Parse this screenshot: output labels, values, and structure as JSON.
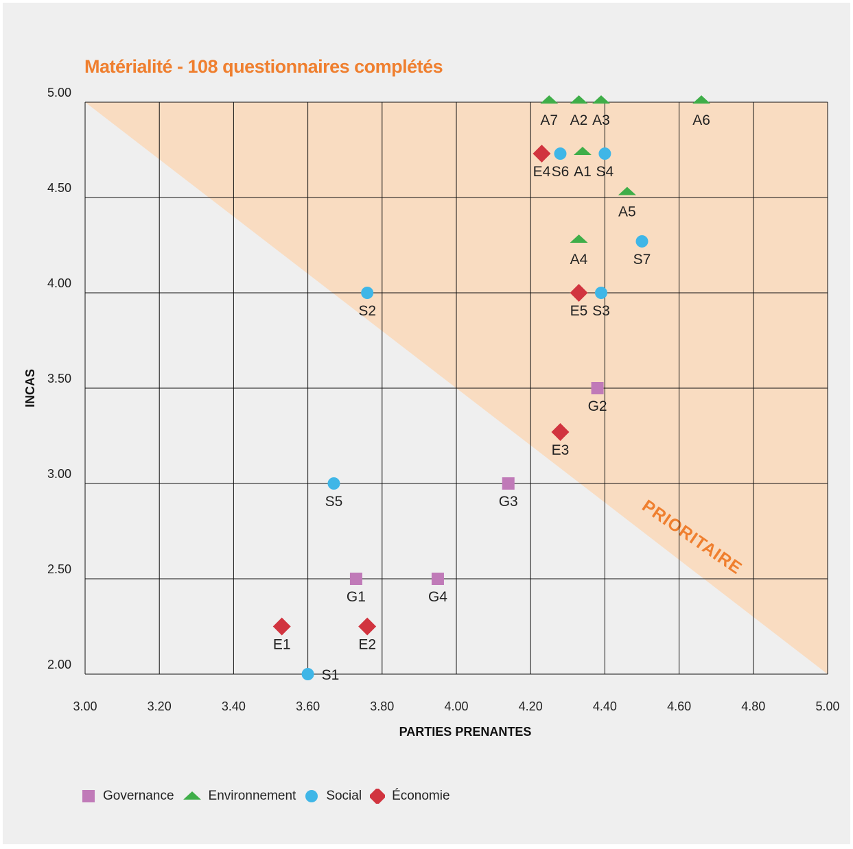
{
  "chart_data": {
    "type": "scatter",
    "title": "Matérialité - 108 questionnaires complétés",
    "xlabel": "PARTIES PRENANTES",
    "ylabel": "INCAS",
    "xlim": [
      3.0,
      5.0
    ],
    "ylim": [
      2.0,
      5.0
    ],
    "x_ticks": [
      "3.00",
      "3.20",
      "3.40",
      "3.60",
      "3.80",
      "4.00",
      "4.20",
      "4.40",
      "4.60",
      "4.80",
      "5.00"
    ],
    "y_ticks": [
      "2.00",
      "2.50",
      "3.00",
      "3.50",
      "4.00",
      "4.50",
      "5.00"
    ],
    "grid": true,
    "legend_position": "bottom-left",
    "priority_zone": {
      "label": "PRIORITAIRE",
      "color": "#f9dcc1",
      "boundary": [
        [
          3.0,
          5.0
        ],
        [
          5.0,
          2.0
        ]
      ]
    },
    "series": [
      {
        "name": "Governance",
        "marker": "square",
        "color": "#c07ab8",
        "points": [
          {
            "label": "G1",
            "x": 3.73,
            "y": 2.5
          },
          {
            "label": "G2",
            "x": 4.38,
            "y": 3.5
          },
          {
            "label": "G3",
            "x": 4.14,
            "y": 3.0
          },
          {
            "label": "G4",
            "x": 3.95,
            "y": 2.5
          }
        ]
      },
      {
        "name": "Environnement",
        "marker": "triangle",
        "color": "#3fae49",
        "points": [
          {
            "label": "A1",
            "x": 4.34,
            "y": 4.73
          },
          {
            "label": "A2",
            "x": 4.33,
            "y": 5.0
          },
          {
            "label": "A3",
            "x": 4.39,
            "y": 5.0
          },
          {
            "label": "A4",
            "x": 4.33,
            "y": 4.27
          },
          {
            "label": "A5",
            "x": 4.46,
            "y": 4.52
          },
          {
            "label": "A6",
            "x": 4.66,
            "y": 5.0
          },
          {
            "label": "A7",
            "x": 4.25,
            "y": 5.0
          }
        ]
      },
      {
        "name": "Social",
        "marker": "circle",
        "color": "#3fb6e7",
        "points": [
          {
            "label": "S1",
            "x": 3.6,
            "y": 2.0
          },
          {
            "label": "S2",
            "x": 3.76,
            "y": 4.0
          },
          {
            "label": "S3",
            "x": 4.39,
            "y": 4.0
          },
          {
            "label": "S4",
            "x": 4.4,
            "y": 4.73
          },
          {
            "label": "S5",
            "x": 3.67,
            "y": 3.0
          },
          {
            "label": "S6",
            "x": 4.28,
            "y": 4.73
          },
          {
            "label": "S7",
            "x": 4.5,
            "y": 4.27
          }
        ]
      },
      {
        "name": "Économie",
        "marker": "diamond",
        "color": "#d1343f",
        "points": [
          {
            "label": "E1",
            "x": 3.53,
            "y": 2.25
          },
          {
            "label": "E2",
            "x": 3.76,
            "y": 2.25
          },
          {
            "label": "E3",
            "x": 4.28,
            "y": 3.27
          },
          {
            "label": "E4",
            "x": 4.23,
            "y": 4.73
          },
          {
            "label": "E5",
            "x": 4.33,
            "y": 4.0
          }
        ]
      }
    ]
  }
}
